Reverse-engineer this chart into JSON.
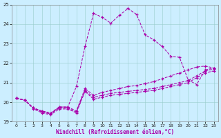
{
  "xlabel": "Windchill (Refroidissement éolien,°C)",
  "bg_color": "#cceeff",
  "line_color": "#aa00aa",
  "xlim": [
    -0.5,
    23.5
  ],
  "ylim": [
    19,
    25
  ],
  "yticks": [
    19,
    20,
    21,
    22,
    23,
    24,
    25
  ],
  "xticks": [
    0,
    1,
    2,
    3,
    4,
    5,
    6,
    7,
    8,
    9,
    10,
    11,
    12,
    13,
    14,
    15,
    16,
    17,
    18,
    19,
    20,
    21,
    22,
    23
  ],
  "x": [
    0,
    1,
    2,
    3,
    4,
    5,
    6,
    7,
    8,
    9,
    10,
    11,
    12,
    13,
    14,
    15,
    16,
    17,
    18,
    19,
    20,
    21,
    22,
    23
  ],
  "y_spiky": [
    20.2,
    20.1,
    19.7,
    19.5,
    19.4,
    19.75,
    19.75,
    20.8,
    22.85,
    24.55,
    24.35,
    24.05,
    24.45,
    24.8,
    24.5,
    23.45,
    23.2,
    22.85,
    22.35,
    22.3,
    21.15,
    20.9,
    21.65,
    21.75
  ],
  "y_line1": [
    20.2,
    20.1,
    19.7,
    19.5,
    19.4,
    19.7,
    19.7,
    19.5,
    20.6,
    20.25,
    20.35,
    20.45,
    20.5,
    20.55,
    20.6,
    20.65,
    20.7,
    20.8,
    20.9,
    21.0,
    21.1,
    21.35,
    21.6,
    21.7
  ],
  "y_line2": [
    20.2,
    20.1,
    19.7,
    19.55,
    19.45,
    19.75,
    19.75,
    19.55,
    20.7,
    20.35,
    20.5,
    20.6,
    20.7,
    20.8,
    20.85,
    20.95,
    21.05,
    21.2,
    21.35,
    21.5,
    21.65,
    21.8,
    21.85,
    21.75
  ],
  "y_line3": [
    20.2,
    20.1,
    19.65,
    19.45,
    19.35,
    19.65,
    19.65,
    19.45,
    20.55,
    20.15,
    20.25,
    20.35,
    20.4,
    20.45,
    20.5,
    20.55,
    20.6,
    20.7,
    20.8,
    20.9,
    21.0,
    21.25,
    21.5,
    21.6
  ]
}
